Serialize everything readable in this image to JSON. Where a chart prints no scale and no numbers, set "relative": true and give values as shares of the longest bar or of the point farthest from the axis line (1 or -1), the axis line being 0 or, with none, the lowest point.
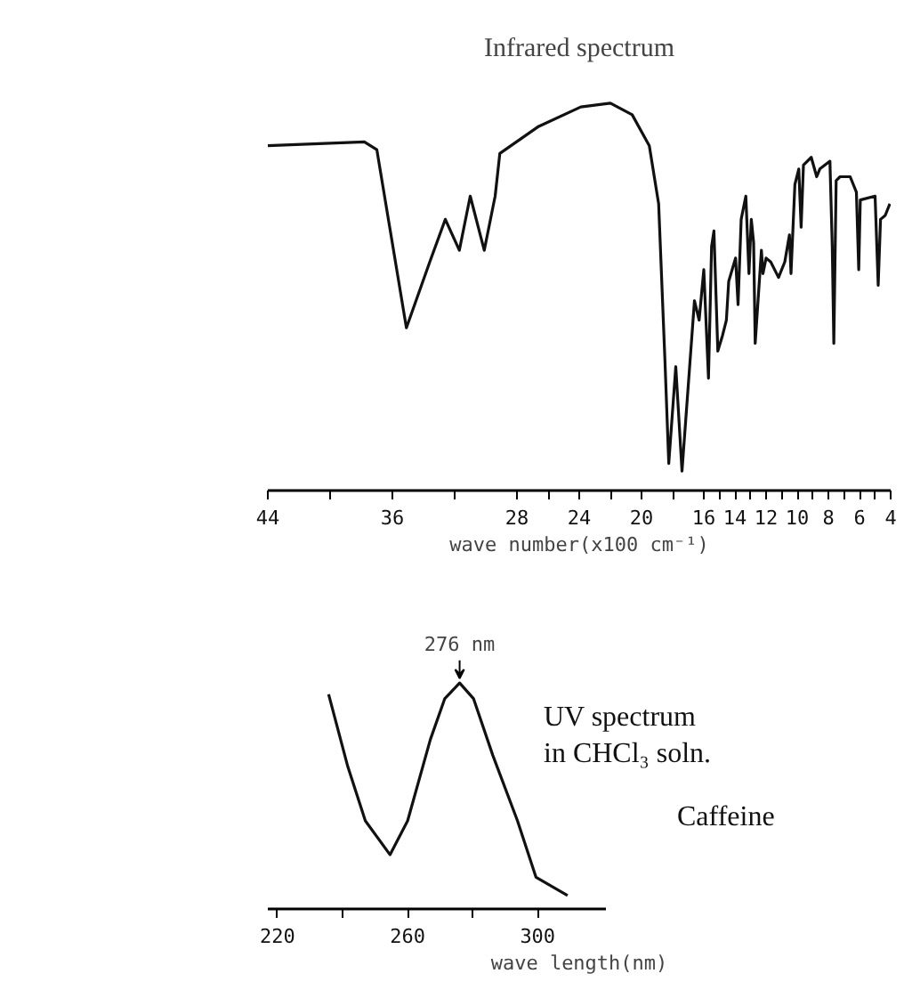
{
  "chart_data": [
    {
      "type": "line",
      "title": "Infrared spectrum",
      "xlabel": "wave number(x100 cm⁻¹)",
      "relative": true,
      "xlim": [
        44,
        4
      ],
      "xticks": [
        44,
        {
          "value": 40,
          "label": null
        },
        36,
        {
          "value": 32,
          "label": null
        },
        28,
        {
          "value": 26,
          "label": null
        },
        24,
        {
          "value": 22,
          "label": null
        },
        20,
        {
          "value": 18,
          "label": null
        },
        16,
        {
          "value": 15,
          "label": null
        },
        14,
        {
          "value": 13,
          "label": null
        },
        12,
        {
          "value": 11,
          "label": null
        },
        10,
        {
          "value": 9,
          "label": null
        },
        8,
        {
          "value": 7,
          "label": null
        },
        6,
        {
          "value": 5,
          "label": null
        },
        4
      ],
      "grid": false,
      "marker": "none",
      "line_style": "solid",
      "series": [
        {
          "color": "#111111",
          "x": [
            44,
            37.8,
            37.0,
            35.1,
            33.6,
            32.6,
            31.7,
            31.0,
            30.1,
            29.4,
            29.1,
            26.6,
            23.9,
            22.0,
            20.6,
            19.5,
            18.9,
            18.5,
            18.25,
            17.8,
            17.4,
            16.6,
            16.3,
            16.0,
            15.7,
            15.5,
            15.35,
            15.1,
            14.8,
            14.55,
            14.4,
            13.96,
            13.8,
            13.6,
            13.3,
            13.1,
            12.95,
            12.8,
            12.7,
            12.3,
            12.2,
            12.0,
            11.7,
            11.2,
            10.8,
            10.5,
            10.4,
            10.15,
            9.9,
            9.75,
            9.6,
            9.1,
            8.75,
            8.55,
            7.9,
            7.75,
            7.65,
            7.5,
            7.25,
            6.6,
            6.2,
            6.05,
            5.95,
            5.0,
            4.8,
            4.65,
            4.35,
            4.05
          ],
          "values": [
            0.89,
            0.9,
            0.88,
            0.42,
            0.59,
            0.7,
            0.62,
            0.76,
            0.62,
            0.76,
            0.87,
            0.94,
            0.99,
            1.0,
            0.97,
            0.89,
            0.74,
            0.34,
            0.07,
            0.32,
            0.05,
            0.49,
            0.44,
            0.57,
            0.29,
            0.63,
            0.67,
            0.36,
            0.4,
            0.44,
            0.54,
            0.6,
            0.48,
            0.7,
            0.76,
            0.56,
            0.7,
            0.64,
            0.38,
            0.62,
            0.56,
            0.6,
            0.59,
            0.55,
            0.59,
            0.66,
            0.56,
            0.79,
            0.83,
            0.68,
            0.84,
            0.86,
            0.81,
            0.83,
            0.85,
            0.63,
            0.38,
            0.8,
            0.81,
            0.81,
            0.77,
            0.57,
            0.75,
            0.76,
            0.53,
            0.7,
            0.71,
            0.74
          ]
        }
      ]
    },
    {
      "type": "line",
      "title": "UV spectrum",
      "subtitle": "in CHCl₃ soln.",
      "xlabel": "wave length(nm)",
      "relative": true,
      "xlim": [
        217,
        321
      ],
      "xticks": [
        220,
        {
          "value": 240,
          "label": null
        },
        260,
        {
          "value": 280,
          "label": null
        },
        300
      ],
      "grid": false,
      "marker": "none",
      "line_style": "solid",
      "annotations": [
        {
          "text": "276 nm",
          "x": 276,
          "y": 1
        },
        "Caffeine"
      ],
      "series": [
        {
          "color": "#111111",
          "x": [
            235.7,
            241.6,
            247,
            254.6,
            260,
            267,
            271.4,
            276,
            280.3,
            286.2,
            293.8,
            299.5,
            309.2
          ],
          "values": [
            0.95,
            0.63,
            0.39,
            0.24,
            0.39,
            0.75,
            0.93,
            1.0,
            0.93,
            0.68,
            0.39,
            0.14,
            0.06
          ]
        }
      ]
    }
  ]
}
